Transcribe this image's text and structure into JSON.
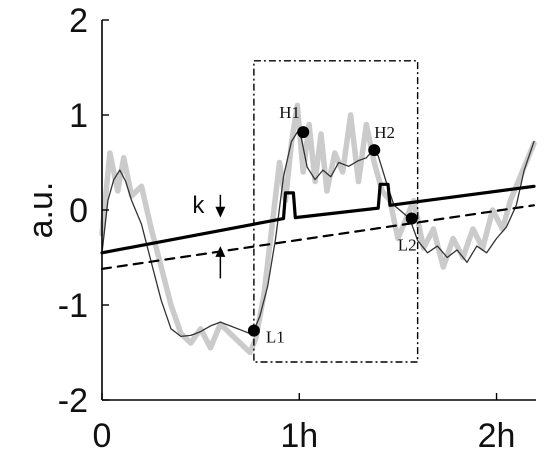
{
  "chart_data": {
    "type": "line",
    "title": "",
    "xlabel": "",
    "ylabel": "a.u.",
    "xlim": [
      0,
      2.2
    ],
    "ylim": [
      -2,
      2
    ],
    "x_ticks": [
      {
        "value": 0,
        "label": "0"
      },
      {
        "value": 1,
        "label": "1h"
      },
      {
        "value": 2,
        "label": "2h"
      }
    ],
    "y_ticks": [
      {
        "value": -2,
        "label": "-2"
      },
      {
        "value": -1,
        "label": "-1"
      },
      {
        "value": 0,
        "label": "0"
      },
      {
        "value": 1,
        "label": "1"
      },
      {
        "value": 2,
        "label": "2"
      }
    ],
    "grid": false,
    "series": [
      {
        "role": "raw",
        "color": "#c8c8c8",
        "x": [
          0.0,
          0.04,
          0.08,
          0.11,
          0.15,
          0.2,
          0.25,
          0.3,
          0.35,
          0.4,
          0.45,
          0.5,
          0.55,
          0.6,
          0.65,
          0.7,
          0.75,
          0.78,
          0.82,
          0.86,
          0.9,
          0.93,
          0.96,
          0.99,
          1.02,
          1.05,
          1.08,
          1.11,
          1.14,
          1.18,
          1.22,
          1.26,
          1.3,
          1.34,
          1.38,
          1.42,
          1.46,
          1.5,
          1.54,
          1.58,
          1.63,
          1.68,
          1.73,
          1.78,
          1.83,
          1.88,
          1.93,
          1.98,
          2.03,
          2.07,
          2.11,
          2.15,
          2.19
        ],
        "y": [
          -0.25,
          0.6,
          0.2,
          0.55,
          0.15,
          0.25,
          -0.2,
          -0.6,
          -1.0,
          -1.3,
          -1.4,
          -1.25,
          -1.45,
          -1.2,
          -1.3,
          -1.4,
          -1.5,
          -1.35,
          -0.9,
          -0.2,
          0.5,
          0.1,
          0.7,
          1.1,
          0.4,
          0.9,
          0.3,
          0.8,
          0.2,
          0.6,
          0.4,
          1.0,
          0.3,
          0.9,
          0.5,
          0.2,
          0.1,
          -0.3,
          -0.1,
          0.1,
          -0.4,
          -0.2,
          -0.6,
          -0.3,
          -0.5,
          -0.2,
          -0.4,
          0.0,
          -0.2,
          0.1,
          0.3,
          0.5,
          0.7
        ]
      },
      {
        "role": "filtered",
        "color": "#333333",
        "x": [
          0.0,
          0.03,
          0.06,
          0.09,
          0.12,
          0.15,
          0.2,
          0.25,
          0.3,
          0.35,
          0.4,
          0.45,
          0.5,
          0.55,
          0.6,
          0.65,
          0.7,
          0.75,
          0.77,
          0.8,
          0.84,
          0.88,
          0.92,
          0.96,
          0.99,
          1.01,
          1.04,
          1.08,
          1.12,
          1.16,
          1.2,
          1.25,
          1.3,
          1.34,
          1.37,
          1.4,
          1.44,
          1.48,
          1.52,
          1.56,
          1.6,
          1.65,
          1.7,
          1.75,
          1.8,
          1.85,
          1.9,
          1.95,
          2.0,
          2.05,
          2.1,
          2.14,
          2.19
        ],
        "y": [
          -0.45,
          0.1,
          0.32,
          0.42,
          0.3,
          0.1,
          -0.15,
          -0.55,
          -0.95,
          -1.25,
          -1.33,
          -1.32,
          -1.28,
          -1.22,
          -1.18,
          -1.22,
          -1.26,
          -1.3,
          -1.27,
          -1.12,
          -0.8,
          -0.3,
          0.35,
          0.72,
          0.82,
          0.76,
          0.45,
          0.32,
          0.42,
          0.35,
          0.5,
          0.46,
          0.52,
          0.55,
          0.62,
          0.57,
          0.3,
          0.05,
          -0.02,
          -0.09,
          -0.32,
          -0.45,
          -0.38,
          -0.5,
          -0.42,
          -0.55,
          -0.38,
          -0.45,
          -0.3,
          -0.18,
          0.05,
          0.42,
          0.72
        ]
      },
      {
        "role": "threshold",
        "color": "#000000",
        "x": [
          0.0,
          0.92,
          0.93,
          0.95,
          0.97,
          0.98,
          1.4,
          1.41,
          1.43,
          1.45,
          1.46,
          2.19
        ],
        "y": [
          -0.45,
          -0.09,
          0.18,
          0.18,
          0.18,
          -0.08,
          0.02,
          0.27,
          0.27,
          0.27,
          0.05,
          0.25
        ]
      },
      {
        "role": "dashed",
        "color": "#000000",
        "x": [
          0.0,
          2.19
        ],
        "y": [
          -0.62,
          0.05
        ]
      }
    ],
    "highlight_points": [
      {
        "label": "H1",
        "x": 1.02,
        "y": 0.82
      },
      {
        "label": "H2",
        "x": 1.38,
        "y": 0.63
      },
      {
        "label": "L1",
        "x": 0.77,
        "y": -1.27
      },
      {
        "label": "L2",
        "x": 1.57,
        "y": -0.09
      }
    ],
    "box": {
      "x": [
        0.77,
        1.6
      ],
      "y": [
        -1.6,
        1.57
      ]
    },
    "annotations": [
      {
        "text": "k"
      }
    ]
  }
}
